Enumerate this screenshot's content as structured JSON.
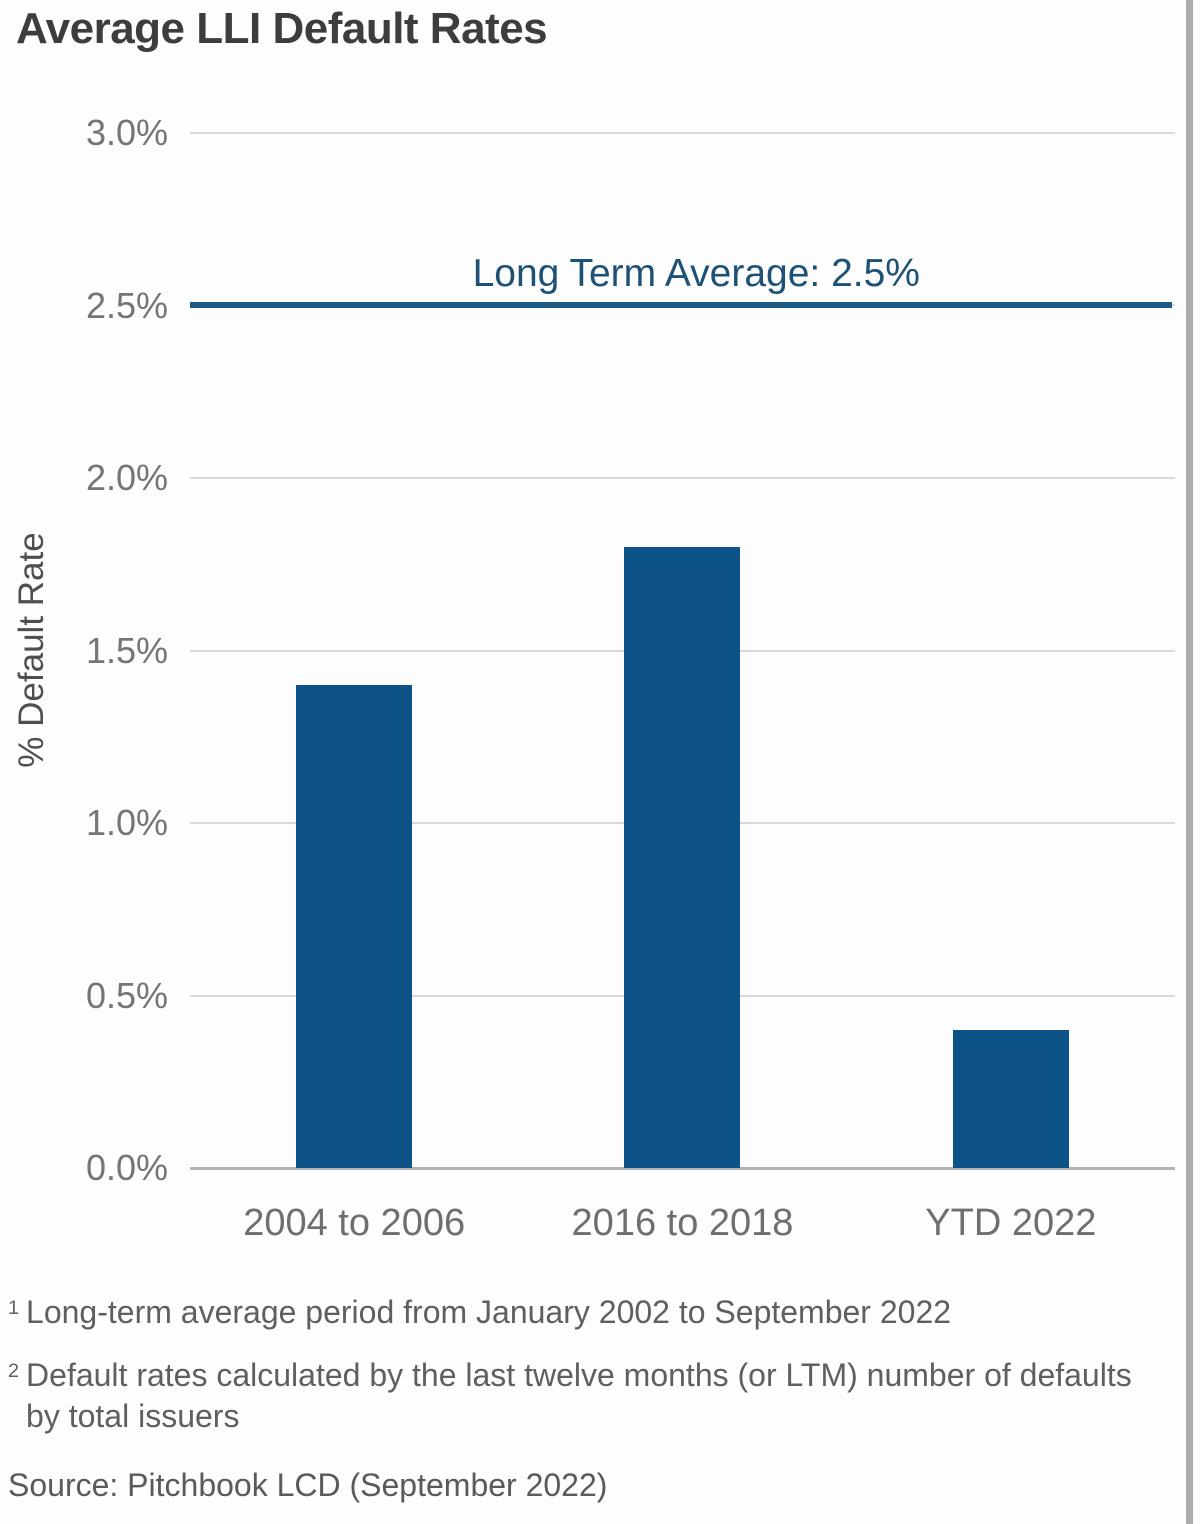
{
  "chart_data": {
    "type": "bar",
    "title": "Average LLI Default Rates",
    "categories": [
      "2004 to 2006",
      "2016 to 2018",
      "YTD 2022"
    ],
    "values": [
      1.4,
      1.8,
      0.4
    ],
    "xlabel": "",
    "ylabel": "% Default Rate",
    "ylim": [
      0,
      3.0
    ],
    "ytick_step": 0.5,
    "ytick_labels": [
      "0.0%",
      "0.5%",
      "1.0%",
      "1.5%",
      "2.0%",
      "2.5%",
      "3.0%"
    ],
    "grid": true,
    "legend": "none",
    "reference_line": {
      "value": 2.5,
      "label": "Long Term Average: 2.5%"
    },
    "colors": {
      "bar": "#0d5388",
      "reference_line": "#1b5a86",
      "reference_label": "#1d5176",
      "gridline": "#d9d9d9",
      "baseline": "#b3b3b3"
    }
  },
  "footnotes": [
    {
      "marker": "1",
      "text": "Long-term average period from January 2002 to September 2022"
    },
    {
      "marker": "2",
      "text": "Default rates calculated by the last twelve months (or LTM) number of defaults by total issuers"
    }
  ],
  "source": "Source: Pitchbook LCD (September 2022)"
}
